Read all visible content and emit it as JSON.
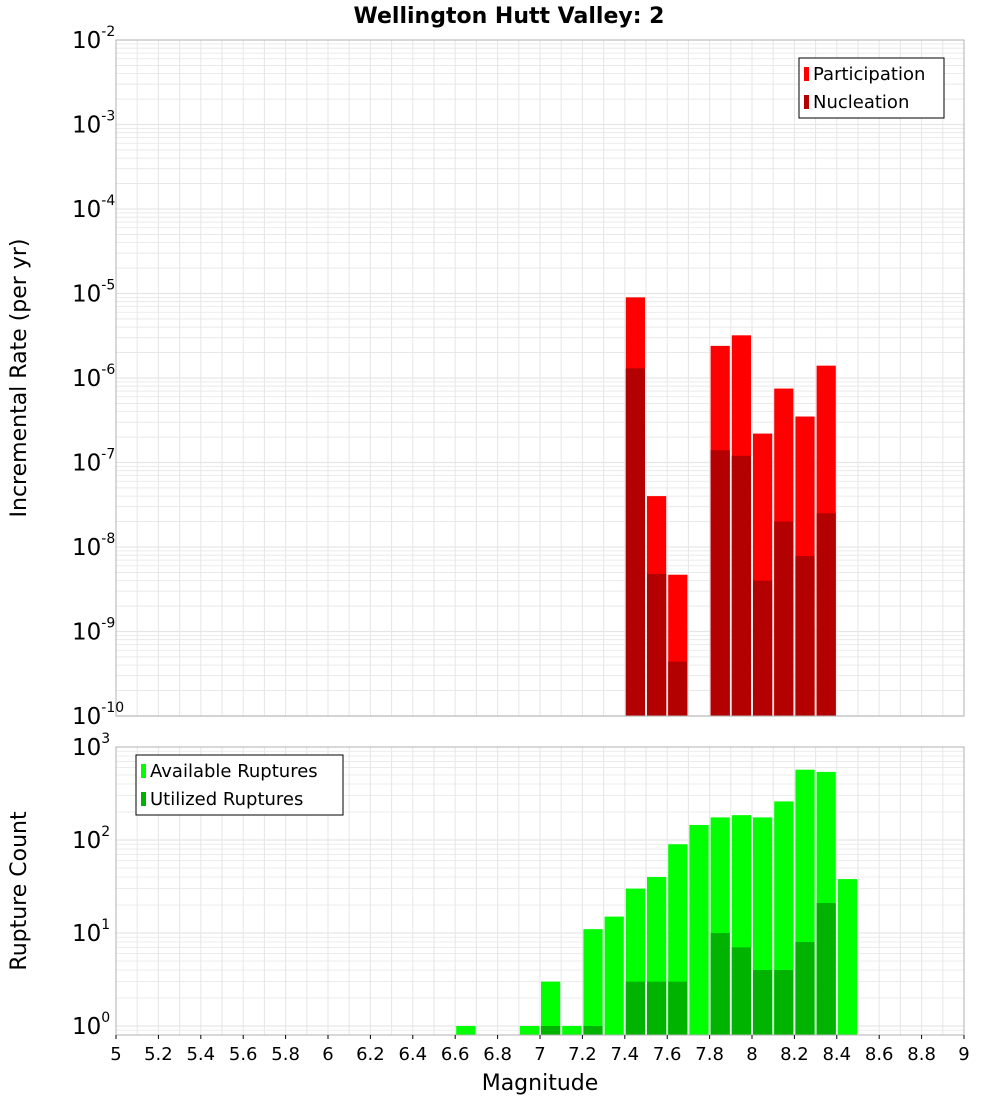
{
  "title": "Wellington Hutt Valley: 2",
  "xlabel": "Magnitude",
  "x_ticks": [
    "5",
    "5.2",
    "5.4",
    "5.6",
    "5.8",
    "6",
    "6.2",
    "6.4",
    "6.6",
    "6.8",
    "7",
    "7.2",
    "7.4",
    "7.6",
    "7.8",
    "8",
    "8.2",
    "8.4",
    "8.6",
    "8.8",
    "9"
  ],
  "colors": {
    "participation": "#ff0000",
    "nucleation": "#b30000",
    "available": "#00ff00",
    "utilized": "#00b300",
    "grid": "#e6e6e6",
    "frame": "#b0b0b0"
  },
  "chart_data": [
    {
      "type": "bar",
      "ylabel": "Incremental Rate (per yr)",
      "yscale": "log",
      "xlim": [
        5,
        9
      ],
      "ylim": [
        1e-10,
        0.01
      ],
      "y_tick_labels": [
        {
          "base": "10",
          "exp": "-2"
        },
        {
          "base": "10",
          "exp": "-3"
        },
        {
          "base": "10",
          "exp": "-4"
        },
        {
          "base": "10",
          "exp": "-5"
        },
        {
          "base": "10",
          "exp": "-6"
        },
        {
          "base": "10",
          "exp": "-7"
        },
        {
          "base": "10",
          "exp": "-8"
        },
        {
          "base": "10",
          "exp": "-9"
        },
        {
          "base": "10",
          "exp": "-10"
        }
      ],
      "legend_position": "top-right",
      "legend": [
        "Participation",
        "Nucleation"
      ],
      "x": [
        7.45,
        7.55,
        7.65,
        7.85,
        7.95,
        8.05,
        8.15,
        8.25,
        8.35
      ],
      "series": [
        {
          "name": "Participation",
          "values": [
            9e-06,
            4e-08,
            4.7e-09,
            2.4e-06,
            3.2e-06,
            2.2e-07,
            7.5e-07,
            3.5e-07,
            1.4e-06
          ]
        },
        {
          "name": "Nucleation",
          "values": [
            1.3e-06,
            4.8e-09,
            4.4e-10,
            1.4e-07,
            1.2e-07,
            4e-09,
            2e-08,
            7.8e-09,
            2.5e-08
          ]
        }
      ],
      "grid": true
    },
    {
      "type": "bar",
      "ylabel": "Rupture Count",
      "yscale": "log",
      "xlim": [
        5,
        9
      ],
      "ylim": [
        0.8,
        1000
      ],
      "y_tick_labels": [
        {
          "base": "10",
          "exp": "3"
        },
        {
          "base": "10",
          "exp": "2"
        },
        {
          "base": "10",
          "exp": "1"
        },
        {
          "base": "10",
          "exp": "0"
        }
      ],
      "legend_position": "top-left",
      "legend": [
        "Available Ruptures",
        "Utilized Ruptures"
      ],
      "x": [
        6.65,
        6.95,
        7.05,
        7.15,
        7.25,
        7.35,
        7.45,
        7.55,
        7.65,
        7.75,
        7.85,
        7.95,
        8.05,
        8.15,
        8.25,
        8.35,
        8.45
      ],
      "series": [
        {
          "name": "Available Ruptures",
          "values": [
            1,
            1,
            3,
            1,
            11,
            15,
            30,
            40,
            90,
            145,
            175,
            185,
            175,
            260,
            570,
            540,
            38
          ]
        },
        {
          "name": "Utilized Ruptures",
          "values": [
            0,
            0,
            1,
            0,
            1,
            0,
            3,
            3,
            3,
            0,
            10,
            7,
            4,
            4,
            8,
            21,
            0
          ]
        }
      ],
      "grid": true
    }
  ]
}
